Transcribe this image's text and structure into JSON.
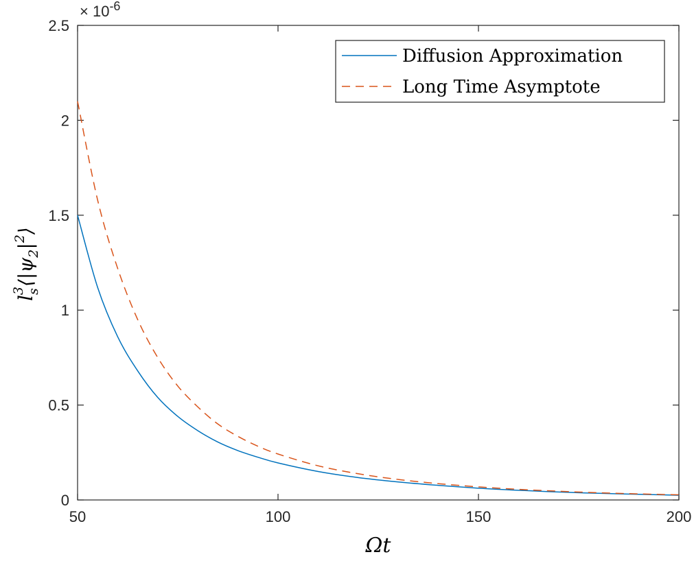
{
  "chart_data": {
    "type": "line",
    "title": "",
    "xlabel": "Ωt",
    "ylabel": "l_s^3 ⟨|ψ_2|^2⟩",
    "xlim": [
      50,
      200
    ],
    "ylim": [
      0,
      2.5e-06
    ],
    "y_exponent_label": "× 10^-6",
    "xticks": [
      50,
      100,
      150,
      200
    ],
    "xtick_labels": [
      "50",
      "100",
      "150",
      "200"
    ],
    "yticks": [
      0,
      5e-07,
      1e-06,
      1.5e-06,
      2e-06,
      2.5e-06
    ],
    "ytick_labels": [
      "0",
      "0.5",
      "1",
      "1.5",
      "2",
      "2.5"
    ],
    "grid": false,
    "legend_position": "top-right",
    "x": [
      50,
      55,
      60,
      65,
      70,
      75,
      80,
      85,
      90,
      95,
      100,
      110,
      120,
      130,
      140,
      150,
      160,
      170,
      180,
      190,
      200
    ],
    "series": [
      {
        "name": "Diffusion Approximation",
        "style": "solid",
        "color": "#0072BD",
        "values": [
          1.5e-06,
          1.12e-06,
          8.6e-07,
          6.8e-07,
          5.4e-07,
          4.4e-07,
          3.65e-07,
          3.05e-07,
          2.6e-07,
          2.25e-07,
          1.95e-07,
          1.5e-07,
          1.18e-07,
          9.5e-08,
          7.7e-08,
          6.2e-08,
          5.1e-08,
          4.2e-08,
          3.5e-08,
          3e-08,
          2.5e-08
        ]
      },
      {
        "name": "Long Time Asymptote",
        "style": "dashed",
        "color": "#D95319",
        "values": [
          2.1e-06,
          1.58e-06,
          1.22e-06,
          9.5e-07,
          7.5e-07,
          6e-07,
          4.9e-07,
          4e-07,
          3.35e-07,
          2.83e-07,
          2.42e-07,
          1.8e-07,
          1.38e-07,
          1.08e-07,
          8.6e-08,
          6.9e-08,
          5.6e-08,
          4.6e-08,
          3.8e-08,
          3.2e-08,
          2.7e-08
        ]
      }
    ]
  }
}
